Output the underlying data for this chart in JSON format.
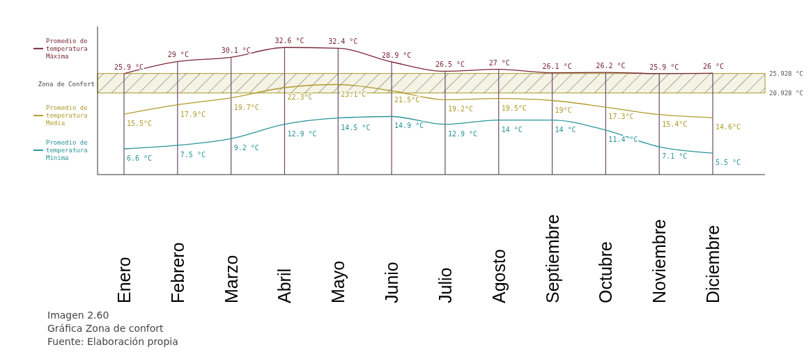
{
  "chart_data": {
    "type": "line",
    "categories": [
      "Enero",
      "Febrero",
      "Marzo",
      "Abril",
      "Mayo",
      "Junio",
      "Julio",
      "Agosto",
      "Septiembre",
      "Octubre",
      "Noviembre",
      "Diciembre"
    ],
    "series": [
      {
        "name": "Promedio de temperatura Máxima",
        "color": "#7a2638",
        "values": [
          25.9,
          29,
          30.1,
          32.6,
          32.4,
          28.9,
          26.5,
          27,
          26.1,
          26.2,
          25.9,
          26
        ],
        "value_labels": [
          "25.9 °C",
          "29 °C",
          "30.1 °C",
          "32.6 °C",
          "32.4 °C",
          "28.9 °C",
          "26.5 °C",
          "27 °C",
          "26.1 °C",
          "26.2 °C",
          "25.9 °C",
          "26 °C"
        ]
      },
      {
        "name": "Promedio de temperatura Media",
        "color": "#b09a2a",
        "values": [
          15.5,
          17.9,
          19.7,
          22.3,
          23.1,
          21.5,
          19.2,
          19.5,
          19,
          17.3,
          15.4,
          14.6
        ],
        "value_labels": [
          "15.5°C",
          "17.9°C",
          "19.7°C",
          "22.3°C",
          "23.1°C",
          "21.5°C",
          "19.2°C",
          "19.5°C",
          "19°C",
          "17.3°C",
          "15.4°C",
          "14.6°C"
        ]
      },
      {
        "name": "Promedio de temperatura Mínima",
        "color": "#2a9498",
        "values": [
          6.6,
          7.5,
          9.2,
          12.9,
          14.5,
          14.9,
          12.9,
          14,
          14,
          11.4,
          7.1,
          5.5
        ],
        "value_labels": [
          "6.6 °C",
          "7.5 °C",
          "9.2 °C",
          "12.9 °C",
          "14.5 °C",
          "14.9 °C",
          "12.9 °C",
          "14 °C",
          "14 °C",
          "11.4 °C",
          "7.1 °C",
          "5.5 °C"
        ]
      }
    ],
    "ylim": [
      0,
      38
    ],
    "yticks": [
      {
        "value": 20.928,
        "label": "20.928 °C"
      },
      {
        "value": 25.928,
        "label": "25.928 °C"
      }
    ],
    "bands": [
      {
        "axis": "y",
        "from": 20.928,
        "to": 25.928,
        "label": "Zona de Confort",
        "color": "#a89a20"
      }
    ],
    "grid": "x",
    "legend": "left",
    "annotations": [
      "Imagen 2.60",
      "Gráfica Zona de confort",
      "Fuente: Elaboración propia"
    ]
  }
}
